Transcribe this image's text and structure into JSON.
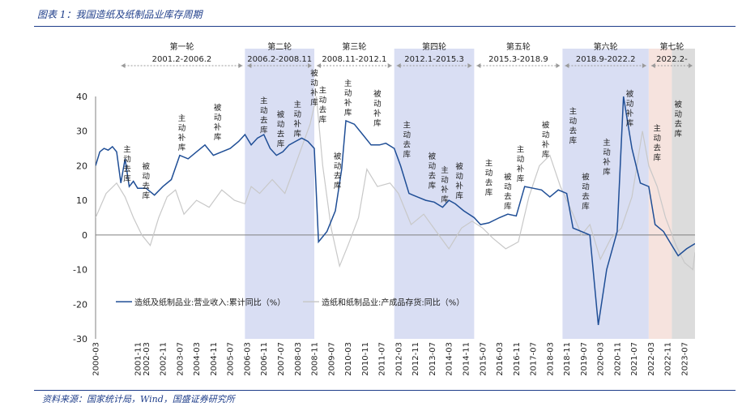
{
  "figure": {
    "title": "图表 1：我国造纸及纸制品业库存周期",
    "source": "资料来源：国家统计局，Wind，国盛证券研究所"
  },
  "colors": {
    "revenue_line": "#1f4e96",
    "inventory_line": "#c8c8c8",
    "shade_blue": "#d9def3",
    "shade_pink": "#f6e3de",
    "shade_gray": "#dcdcdc",
    "arrow": "#9a9a9a",
    "axis_text": "#222222",
    "rule": "#1f3e8a"
  },
  "chart_data": {
    "type": "line",
    "ylim": [
      -30,
      40
    ],
    "yticks": [
      -30,
      -20,
      -10,
      0,
      10,
      20,
      30,
      40
    ],
    "xlim": [
      "2000-03",
      "2023-12"
    ],
    "xtick_labels": [
      "2000-03",
      "2001-11",
      "2002-03",
      "2002-11",
      "2003-07",
      "2004-03",
      "2004-11",
      "2005-07",
      "2006-03",
      "2006-11",
      "2007-07",
      "2008-03",
      "2008-11",
      "2009-07",
      "2010-03",
      "2010-11",
      "2011-07",
      "2012-03",
      "2012-11",
      "2013-07",
      "2014-03",
      "2014-11",
      "2015-07",
      "2016-03",
      "2016-11",
      "2017-07",
      "2018-03",
      "2018-11",
      "2019-07",
      "2020-03",
      "2020-11",
      "2021-07",
      "2022-03",
      "2022-11",
      "2023-07"
    ],
    "series": [
      {
        "name": "造纸及纸制品业:营业收入:累计同比（%）",
        "style": "solid-blue",
        "points": [
          [
            "2000-03",
            20
          ],
          [
            "2000-05",
            24
          ],
          [
            "2000-07",
            25
          ],
          [
            "2000-09",
            24.5
          ],
          [
            "2000-11",
            25.5
          ],
          [
            "2001-01",
            24
          ],
          [
            "2001-03",
            15
          ],
          [
            "2001-05",
            22
          ],
          [
            "2001-07",
            14
          ],
          [
            "2001-09",
            15.5
          ],
          [
            "2001-11",
            13.5
          ],
          [
            "2002-03",
            13.5
          ],
          [
            "2002-07",
            11.5
          ],
          [
            "2002-11",
            14
          ],
          [
            "2003-03",
            16
          ],
          [
            "2003-07",
            23
          ],
          [
            "2003-11",
            22
          ],
          [
            "2004-03",
            24
          ],
          [
            "2004-07",
            26
          ],
          [
            "2004-11",
            23
          ],
          [
            "2005-03",
            24
          ],
          [
            "2005-07",
            25
          ],
          [
            "2005-11",
            27
          ],
          [
            "2006-02",
            29
          ],
          [
            "2006-05",
            26
          ],
          [
            "2006-08",
            28
          ],
          [
            "2006-11",
            29
          ],
          [
            "2007-02",
            25
          ],
          [
            "2007-05",
            23
          ],
          [
            "2007-08",
            24
          ],
          [
            "2007-11",
            26
          ],
          [
            "2008-02",
            27
          ],
          [
            "2008-05",
            28
          ],
          [
            "2008-08",
            27
          ],
          [
            "2008-11",
            25
          ],
          [
            "2009-01",
            -2
          ],
          [
            "2009-05",
            1
          ],
          [
            "2009-09",
            7
          ],
          [
            "2009-12",
            19
          ],
          [
            "2010-02",
            33
          ],
          [
            "2010-06",
            32
          ],
          [
            "2010-10",
            29
          ],
          [
            "2011-02",
            26
          ],
          [
            "2011-06",
            26
          ],
          [
            "2011-09",
            26.5
          ],
          [
            "2012-01",
            25
          ],
          [
            "2012-04",
            20
          ],
          [
            "2012-08",
            12
          ],
          [
            "2012-12",
            11
          ],
          [
            "2013-04",
            10
          ],
          [
            "2013-08",
            9.5
          ],
          [
            "2013-12",
            8
          ],
          [
            "2014-03",
            10
          ],
          [
            "2014-06",
            9
          ],
          [
            "2014-10",
            7
          ],
          [
            "2015-03",
            5
          ],
          [
            "2015-06",
            3
          ],
          [
            "2015-10",
            3.5
          ],
          [
            "2016-03",
            5
          ],
          [
            "2016-07",
            6
          ],
          [
            "2016-11",
            5.5
          ],
          [
            "2017-03",
            14
          ],
          [
            "2017-07",
            13.5
          ],
          [
            "2017-11",
            13
          ],
          [
            "2018-03",
            11
          ],
          [
            "2018-07",
            13
          ],
          [
            "2018-11",
            12
          ],
          [
            "2019-02",
            2
          ],
          [
            "2019-06",
            1
          ],
          [
            "2019-10",
            0
          ],
          [
            "2020-02",
            -26
          ],
          [
            "2020-06",
            -10
          ],
          [
            "2020-11",
            1
          ],
          [
            "2021-02",
            40
          ],
          [
            "2021-06",
            25
          ],
          [
            "2021-10",
            15
          ],
          [
            "2022-02",
            14
          ],
          [
            "2022-05",
            3
          ],
          [
            "2022-09",
            1
          ],
          [
            "2023-01",
            -3
          ],
          [
            "2023-04",
            -6
          ],
          [
            "2023-08",
            -4
          ],
          [
            "2023-12",
            -2.5
          ]
        ]
      },
      {
        "name": "造纸和纸制品业:产成品存货:同比（%）",
        "style": "solid-gray",
        "points": [
          [
            "2000-03",
            5
          ],
          [
            "2000-08",
            12
          ],
          [
            "2001-01",
            15
          ],
          [
            "2001-05",
            11
          ],
          [
            "2001-09",
            5
          ],
          [
            "2002-01",
            0
          ],
          [
            "2002-05",
            -3
          ],
          [
            "2002-09",
            5
          ],
          [
            "2003-01",
            11
          ],
          [
            "2003-05",
            13
          ],
          [
            "2003-09",
            6
          ],
          [
            "2004-03",
            10
          ],
          [
            "2004-09",
            8
          ],
          [
            "2005-03",
            13
          ],
          [
            "2005-09",
            10
          ],
          [
            "2006-02",
            9
          ],
          [
            "2006-05",
            14
          ],
          [
            "2006-09",
            12
          ],
          [
            "2007-03",
            16
          ],
          [
            "2007-09",
            12
          ],
          [
            "2008-03",
            22
          ],
          [
            "2008-09",
            32
          ],
          [
            "2008-12",
            40
          ],
          [
            "2009-03",
            20
          ],
          [
            "2009-07",
            2
          ],
          [
            "2009-11",
            -9
          ],
          [
            "2010-03",
            -3
          ],
          [
            "2010-08",
            5
          ],
          [
            "2010-12",
            19
          ],
          [
            "2011-05",
            14
          ],
          [
            "2011-11",
            15
          ],
          [
            "2012-03",
            12
          ],
          [
            "2012-09",
            3
          ],
          [
            "2013-03",
            6
          ],
          [
            "2013-09",
            1
          ],
          [
            "2014-03",
            -4
          ],
          [
            "2014-09",
            2
          ],
          [
            "2015-02",
            4
          ],
          [
            "2015-07",
            2
          ],
          [
            "2015-12",
            -1
          ],
          [
            "2016-06",
            -4
          ],
          [
            "2016-12",
            -2
          ],
          [
            "2017-05",
            11
          ],
          [
            "2017-10",
            20
          ],
          [
            "2018-03",
            23
          ],
          [
            "2018-08",
            14
          ],
          [
            "2019-02",
            6
          ],
          [
            "2019-06",
            0
          ],
          [
            "2019-10",
            3
          ],
          [
            "2020-03",
            -7
          ],
          [
            "2020-08",
            -1
          ],
          [
            "2021-01",
            2
          ],
          [
            "2021-06",
            11
          ],
          [
            "2021-11",
            30
          ],
          [
            "2022-02",
            20
          ],
          [
            "2022-06",
            14
          ],
          [
            "2022-10",
            5
          ],
          [
            "2023-03",
            -3
          ],
          [
            "2023-07",
            -8
          ],
          [
            "2023-11",
            -10
          ],
          [
            "2023-12",
            -5
          ]
        ]
      }
    ],
    "cycles": [
      {
        "name": "第一轮",
        "range": "2001.2-2006.2",
        "start": "2001-02",
        "end": "2006-02",
        "shade": "none"
      },
      {
        "name": "第二轮",
        "range": "2006.2-2008.11",
        "start": "2006-02",
        "end": "2008-11",
        "shade": "blue"
      },
      {
        "name": "第三轮",
        "range": "2008.11-2012.1",
        "start": "2008-11",
        "end": "2012-01",
        "shade": "none"
      },
      {
        "name": "第四轮",
        "range": "2012.1-2015.3",
        "start": "2012-01",
        "end": "2015-03",
        "shade": "blue"
      },
      {
        "name": "第五轮",
        "range": "2015.3-2018.9",
        "start": "2015-03",
        "end": "2018-09",
        "shade": "none"
      },
      {
        "name": "第六轮",
        "range": "2018.9-2022.2",
        "start": "2018-09",
        "end": "2022-02",
        "shade": "blue"
      },
      {
        "name": "第七轮",
        "range": "2022.2-",
        "start": "2022-02",
        "end": "2023-12",
        "shade": "pink-gray"
      }
    ],
    "phase_annotations": [
      {
        "text": "主动去库",
        "x": "2001-06",
        "y": 24
      },
      {
        "text": "被动去库",
        "x": "2002-03",
        "y": 19
      },
      {
        "text": "主动补库",
        "x": "2003-08",
        "y": 33
      },
      {
        "text": "被动补库",
        "x": "2005-01",
        "y": 36
      },
      {
        "text": "主动去库",
        "x": "2006-11",
        "y": 38
      },
      {
        "text": "被动去库",
        "x": "2007-07",
        "y": 34
      },
      {
        "text": "主动补库",
        "x": "2008-03",
        "y": 37
      },
      {
        "text": "被动补库",
        "x": "2008-11",
        "y": 46
      },
      {
        "text": "主动去库",
        "x": "2009-03",
        "y": 41
      },
      {
        "text": "被动去库",
        "x": "2009-10",
        "y": 22
      },
      {
        "text": "主动补库",
        "x": "2010-03",
        "y": 43
      },
      {
        "text": "被动补库",
        "x": "2011-05",
        "y": 40
      },
      {
        "text": "主动去库",
        "x": "2012-07",
        "y": 31
      },
      {
        "text": "被动去库",
        "x": "2013-07",
        "y": 22
      },
      {
        "text": "主动补库",
        "x": "2014-01",
        "y": 18
      },
      {
        "text": "被动补库",
        "x": "2014-08",
        "y": 19
      },
      {
        "text": "主动去库",
        "x": "2015-10",
        "y": 20
      },
      {
        "text": "被动去库",
        "x": "2016-07",
        "y": 16
      },
      {
        "text": "主动补库",
        "x": "2017-01",
        "y": 24
      },
      {
        "text": "被动补库",
        "x": "2018-01",
        "y": 31
      },
      {
        "text": "主动去库",
        "x": "2019-02",
        "y": 35
      },
      {
        "text": "被动去库",
        "x": "2019-08",
        "y": 16
      },
      {
        "text": "主动补库",
        "x": "2020-06",
        "y": 26
      },
      {
        "text": "被动补库",
        "x": "2021-05",
        "y": 40
      },
      {
        "text": "主动去库",
        "x": "2022-06",
        "y": 30
      },
      {
        "text": "被动去库",
        "x": "2023-04",
        "y": 37
      }
    ]
  }
}
